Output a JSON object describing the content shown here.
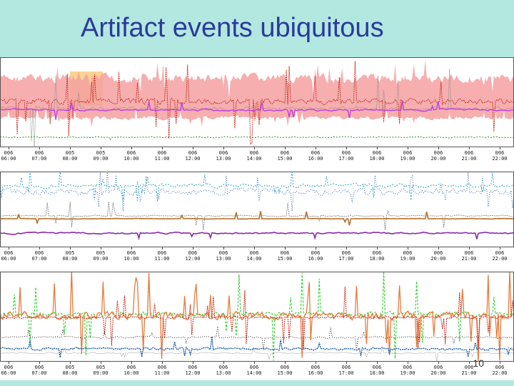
{
  "slide": {
    "title": "Artifact events ubiquitous",
    "page_number": "10"
  },
  "axes": {
    "ticks": [
      {
        "date": "006",
        "time": "06:00"
      },
      {
        "date": "006",
        "time": "07:00"
      },
      {
        "date": "005",
        "time": "08:00"
      },
      {
        "date": "005",
        "time": "09:00"
      },
      {
        "date": "006",
        "time": "10:00"
      },
      {
        "date": "006",
        "time": "11:00"
      },
      {
        "date": "006",
        "time": "12:00"
      },
      {
        "date": "006",
        "time": "13:00"
      },
      {
        "date": "006",
        "time": "14:00"
      },
      {
        "date": "006",
        "time": "15:00"
      },
      {
        "date": "006",
        "time": "16:00"
      },
      {
        "date": "006",
        "time": "17:00"
      },
      {
        "date": "006",
        "time": "18:00"
      },
      {
        "date": "006",
        "time": "19:00"
      },
      {
        "date": "006",
        "time": "20:00"
      },
      {
        "date": "006",
        "time": "21:00"
      },
      {
        "date": "006",
        "time": "22:00"
      }
    ]
  },
  "colors": {
    "band": "#f5a0a0",
    "red": "#c8281e",
    "magenta": "#c040e0",
    "green": "#2e8b2e",
    "cyan": "#2aa8c8",
    "blue": "#1f5fb0",
    "orange": "#e87a3a",
    "brown": "#b8702a",
    "purple": "#8a2aa8",
    "lime": "#3ad43a",
    "gray": "#888888",
    "black": "#111111",
    "highlight": "#f8c878"
  }
}
